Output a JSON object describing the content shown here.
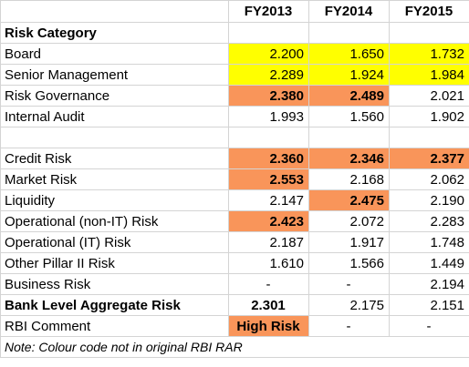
{
  "colors": {
    "yellow": "#ffff00",
    "orange": "#f9955a",
    "gridline": "#d4d4d4"
  },
  "header": {
    "c1": "FY2013",
    "c2": "FY2014",
    "c3": "FY2015"
  },
  "rows": [
    {
      "label": "Risk Category",
      "bold": true,
      "cells": []
    },
    {
      "label": "Board",
      "cells": [
        {
          "v": "2.200",
          "bg": "yellow"
        },
        {
          "v": "1.650",
          "bg": "yellow"
        },
        {
          "v": "1.732",
          "bg": "yellow"
        }
      ]
    },
    {
      "label": "Senior Management",
      "cells": [
        {
          "v": "2.289",
          "bg": "yellow"
        },
        {
          "v": "1.924",
          "bg": "yellow"
        },
        {
          "v": "1.984",
          "bg": "yellow"
        }
      ]
    },
    {
      "label": "Risk Governance",
      "cells": [
        {
          "v": "2.380",
          "bg": "orange",
          "bold": true
        },
        {
          "v": "2.489",
          "bg": "orange",
          "bold": true
        },
        {
          "v": "2.021"
        }
      ]
    },
    {
      "label": "Internal Audit",
      "cells": [
        {
          "v": "1.993"
        },
        {
          "v": "1.560"
        },
        {
          "v": "1.902"
        }
      ]
    },
    {
      "blank": true,
      "cells": []
    },
    {
      "label": "Credit Risk",
      "cells": [
        {
          "v": "2.360",
          "bg": "orange",
          "bold": true
        },
        {
          "v": "2.346",
          "bg": "orange",
          "bold": true
        },
        {
          "v": "2.377",
          "bg": "orange",
          "bold": true
        }
      ]
    },
    {
      "label": "Market Risk",
      "cells": [
        {
          "v": "2.553",
          "bg": "orange",
          "bold": true
        },
        {
          "v": "2.168"
        },
        {
          "v": "2.062"
        }
      ]
    },
    {
      "label": "Liquidity",
      "cells": [
        {
          "v": "2.147"
        },
        {
          "v": "2.475",
          "bg": "orange",
          "bold": true
        },
        {
          "v": "2.190"
        }
      ]
    },
    {
      "label": "Operational (non-IT) Risk",
      "cells": [
        {
          "v": "2.423",
          "bg": "orange",
          "bold": true
        },
        {
          "v": "2.072"
        },
        {
          "v": "2.283"
        }
      ]
    },
    {
      "label": "Operational (IT) Risk",
      "cells": [
        {
          "v": "2.187"
        },
        {
          "v": "1.917"
        },
        {
          "v": "1.748"
        }
      ]
    },
    {
      "label": "Other Pillar II Risk",
      "cells": [
        {
          "v": "1.610"
        },
        {
          "v": "1.566"
        },
        {
          "v": "1.449"
        }
      ]
    },
    {
      "label": "Business Risk",
      "cells": [
        {
          "v": "-",
          "center": true
        },
        {
          "v": "-",
          "center": true
        },
        {
          "v": "2.194"
        }
      ]
    },
    {
      "label": "Bank Level Aggregate Risk",
      "bold": true,
      "cells": [
        {
          "v": "2.301",
          "bold": true,
          "center": true
        },
        {
          "v": "2.175"
        },
        {
          "v": "2.151"
        }
      ]
    },
    {
      "label": "RBI Comment",
      "cells": [
        {
          "v": "High Risk",
          "bg": "orange",
          "bold": true,
          "center": true
        },
        {
          "v": "-",
          "center": true
        },
        {
          "v": "-",
          "center": true
        }
      ]
    },
    {
      "note": "Note: Colour code not in original RBI RAR"
    }
  ]
}
